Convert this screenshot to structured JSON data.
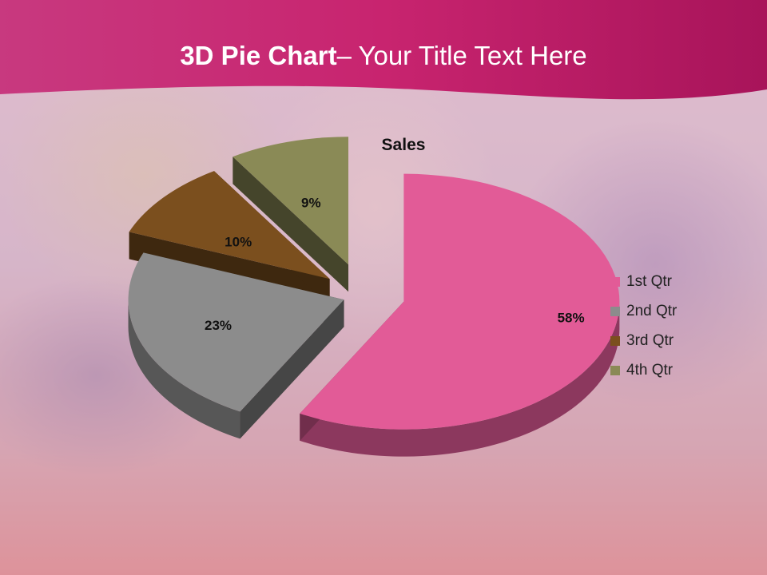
{
  "slide": {
    "title_bold": "3D Pie Chart",
    "title_rest": "– Your Title Text Here"
  },
  "colors": {
    "header": "#c21f6d",
    "slice_1": "#e25b97",
    "slice_2": "#8c8c8c",
    "slice_3": "#7b4f1e",
    "slice_4": "#8a8a56"
  },
  "chart_data": {
    "type": "pie",
    "style": "3d-exploded",
    "title": "Sales",
    "categories": [
      "1st Qtr",
      "2nd Qtr",
      "3rd Qtr",
      "4th Qtr"
    ],
    "values": [
      58,
      23,
      10,
      9
    ],
    "data_labels": [
      "58%",
      "23%",
      "10%",
      "9%"
    ],
    "legend_position": "right"
  }
}
